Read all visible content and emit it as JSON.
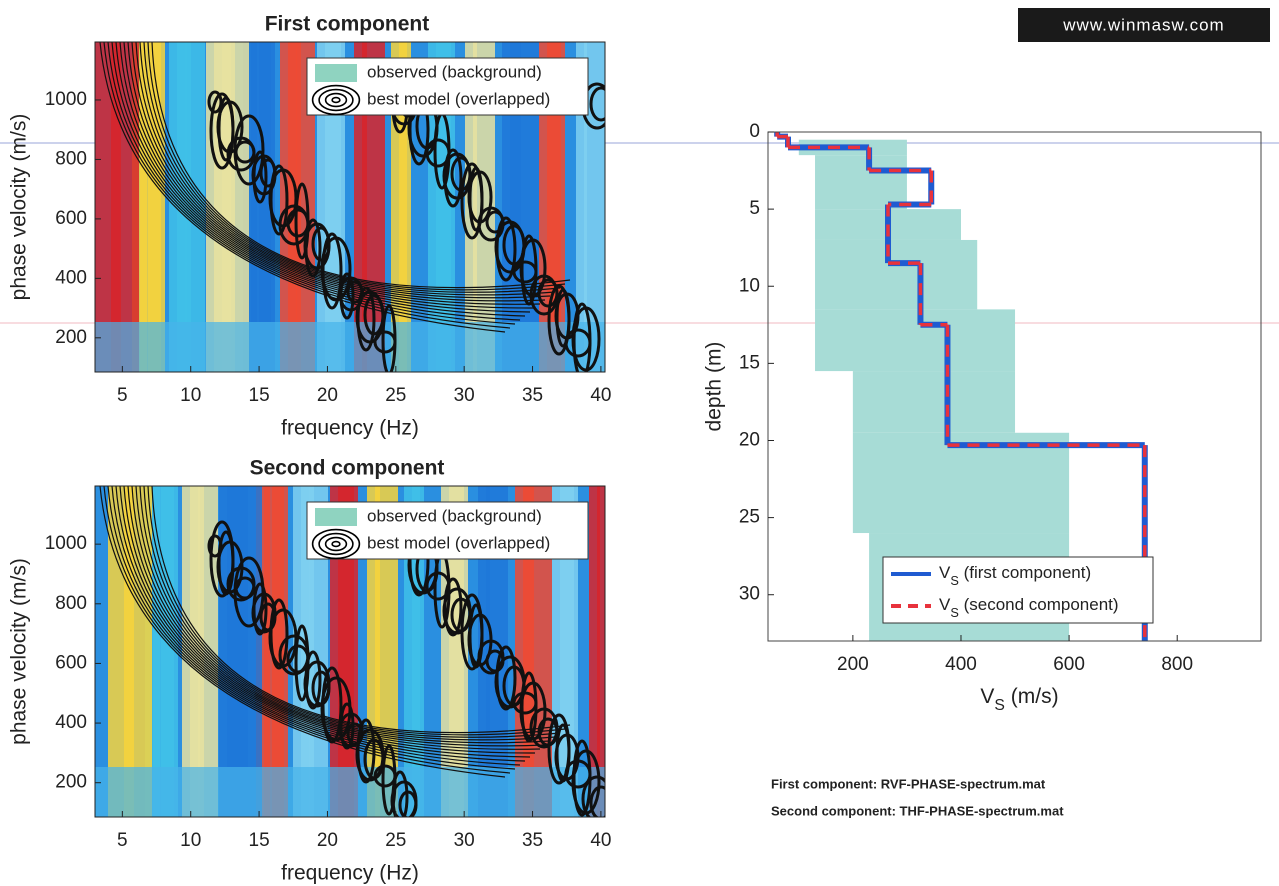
{
  "logo": "www.winmasw.com",
  "chart_data": [
    {
      "type": "spectrum",
      "title": "First component",
      "x_label": "frequency (Hz)",
      "y_label": "phase velocity (m/s)",
      "xlim": [
        3,
        40.3
      ],
      "xticks": [
        5,
        10,
        15,
        20,
        25,
        30,
        35,
        40
      ],
      "ylim": [
        85,
        1195
      ],
      "yticks": [
        200,
        400,
        600,
        800,
        1000
      ],
      "series": [
        {
          "name": "observed (background)",
          "color": "#8fd3c0"
        },
        {
          "name": "best model (overlapped)",
          "color": "#000000"
        }
      ]
    },
    {
      "type": "spectrum",
      "title": "Second component",
      "x_label": "frequency (Hz)",
      "y_label": "phase velocity (m/s)",
      "xlim": [
        3,
        40.3
      ],
      "xticks": [
        5,
        10,
        15,
        20,
        25,
        30,
        35,
        40
      ],
      "ylim": [
        85,
        1195
      ],
      "yticks": [
        200,
        400,
        600,
        800,
        1000
      ],
      "series": [
        {
          "name": "observed (background)",
          "color": "#8fd3c0"
        },
        {
          "name": "best model (overlapped)",
          "color": "#000000"
        }
      ]
    },
    {
      "type": "step",
      "x_label": [
        "V",
        "S",
        " (m/s)"
      ],
      "y_label": "depth (m)",
      "xlim": [
        43,
        955
      ],
      "xticks": [
        200,
        400,
        600,
        800
      ],
      "ylim": [
        0,
        33
      ],
      "yticks": [
        0,
        5,
        10,
        15,
        20,
        25,
        30
      ],
      "y_inverted": true,
      "observed_range": {
        "color": "#a7dcd6",
        "depth": [
          0.5,
          1.5,
          5,
          7,
          11.5,
          15.5,
          19.5,
          26
        ],
        "min": [
          100,
          130,
          130,
          130,
          130,
          200,
          200,
          230
        ],
        "max": [
          300,
          300,
          400,
          430,
          500,
          500,
          600,
          600
        ]
      },
      "depth": [
        0,
        0.3,
        1,
        2.5,
        4.7,
        8.5,
        12.5,
        20.3
      ],
      "series": [
        {
          "name": [
            "V",
            "S",
            " (first component)"
          ],
          "color": "#1f5bd1",
          "dashed": false,
          "values": [
            60,
            80,
            230,
            345,
            265,
            325,
            375,
            740
          ]
        },
        {
          "name": [
            "V",
            "S",
            " (second component)"
          ],
          "color": "#e8323c",
          "dashed": true,
          "values": [
            60,
            80,
            230,
            345,
            265,
            325,
            375,
            740
          ]
        }
      ]
    }
  ],
  "footer": [
    "First component: RVF-PHASE-spectrum.mat",
    "Second component: THF-PHASE-spectrum.mat"
  ]
}
